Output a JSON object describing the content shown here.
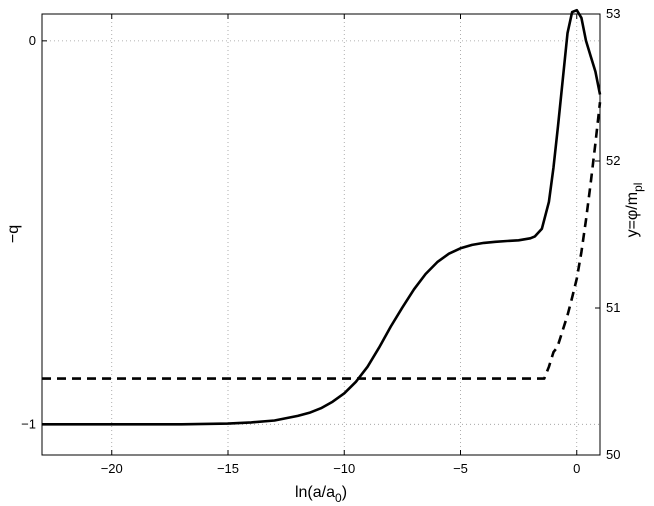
{
  "chart_data": {
    "type": "line",
    "title": "",
    "xlabel": {
      "main": "ln(a/a",
      "sub": "0",
      "close": ")"
    },
    "ylabel_left": "−q",
    "ylabel_right": {
      "main": "y=φ/m",
      "sub": "pl"
    },
    "xlim": [
      -23,
      1
    ],
    "ylim_left": [
      -1.08,
      0.07
    ],
    "ylim_right": [
      50,
      53
    ],
    "x_ticks": [
      {
        "value": -20,
        "label": "−20"
      },
      {
        "value": -15,
        "label": "−15"
      },
      {
        "value": -10,
        "label": "−10"
      },
      {
        "value": -5,
        "label": "−5"
      },
      {
        "value": 0,
        "label": "0"
      }
    ],
    "y_left_ticks": [
      {
        "value": 0,
        "label": "0"
      },
      {
        "value": -1,
        "label": "−1"
      }
    ],
    "y_right_ticks": [
      {
        "value": 50,
        "label": "50"
      },
      {
        "value": 51,
        "label": "51"
      },
      {
        "value": 52,
        "label": "52"
      },
      {
        "value": 53,
        "label": "53"
      }
    ],
    "grid": true,
    "series": [
      {
        "axis": "left",
        "style": "solid",
        "color": "#000000",
        "x": [
          -23,
          -20,
          -17,
          -15,
          -14,
          -13,
          -12,
          -11.5,
          -11,
          -10.5,
          -10,
          -9.5,
          -9,
          -8.5,
          -8,
          -7.5,
          -7,
          -6.5,
          -6,
          -5.5,
          -5,
          -4.5,
          -4,
          -3.5,
          -3,
          -2.5,
          -2,
          -1.8,
          -1.5,
          -1.2,
          -1.0,
          -0.8,
          -0.6,
          -0.4,
          -0.2,
          0.0,
          0.2,
          0.4,
          0.6,
          0.8,
          1.0
        ],
        "y": [
          -1.0,
          -1.0,
          -1.0,
          -0.998,
          -0.995,
          -0.99,
          -0.978,
          -0.97,
          -0.958,
          -0.941,
          -0.919,
          -0.889,
          -0.85,
          -0.8,
          -0.745,
          -0.695,
          -0.648,
          -0.608,
          -0.577,
          -0.555,
          -0.541,
          -0.532,
          -0.527,
          -0.524,
          -0.522,
          -0.52,
          -0.515,
          -0.51,
          -0.49,
          -0.42,
          -0.33,
          -0.22,
          -0.1,
          0.02,
          0.075,
          0.08,
          0.06,
          0.0,
          -0.04,
          -0.08,
          -0.14
        ]
      },
      {
        "axis": "right",
        "style": "dashed",
        "color": "#000000",
        "x": [
          -23,
          -1.4,
          -1.2,
          -1.1,
          -1.0,
          -0.9,
          -0.8,
          -0.7,
          -0.6,
          -0.4,
          -0.2,
          0.0,
          0.2,
          0.4,
          0.6,
          0.8,
          1.0
        ],
        "y": [
          50.52,
          50.52,
          50.6,
          50.65,
          50.7,
          50.72,
          50.75,
          50.8,
          50.85,
          50.95,
          51.07,
          51.2,
          51.38,
          51.6,
          51.85,
          52.12,
          52.4
        ]
      }
    ]
  }
}
